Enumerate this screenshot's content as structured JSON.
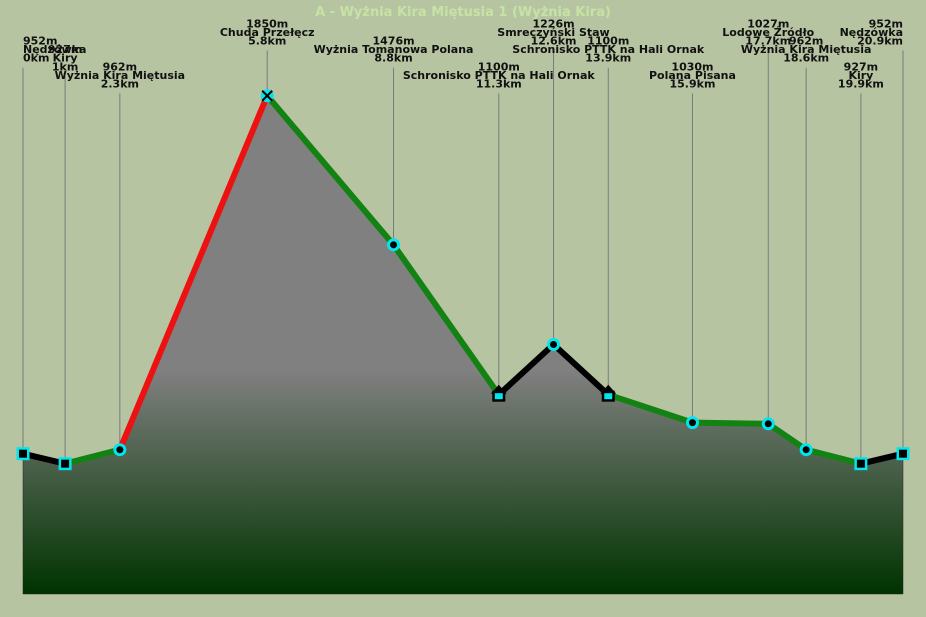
{
  "chart_data": {
    "type": "area",
    "title": "A - Wyżnia Kira Miętusia 1 (Wyżnia Kira)",
    "xlabel": "",
    "ylabel": "",
    "xlim": [
      0,
      20.9
    ],
    "ylim": [
      600,
      2040
    ],
    "colors": {
      "background": "#b7c4a2",
      "area_top": "#808080",
      "area_bottom": "#003300",
      "guide": "#7a7a7a",
      "marker_fill": "#00e5ee",
      "marker_stroke": "#000000"
    },
    "points": [
      {
        "name": "Nędzówka",
        "elev": 952,
        "elev_label": "952m",
        "dist": 0,
        "dist_label": "0km",
        "marker": "square",
        "anchor": "start",
        "lines": 3
      },
      {
        "name": "Kiry",
        "elev": 927,
        "elev_label": "927m",
        "dist": 1,
        "dist_label": "1km",
        "marker": "square",
        "anchor": "middle",
        "lines": 4
      },
      {
        "name": "Wyżnia Kira Miętusia",
        "elev": 962,
        "elev_label": "962m",
        "dist": 2.3,
        "dist_label": "2.3km",
        "marker": "circle",
        "anchor": "middle",
        "lines": 6
      },
      {
        "name": "Chuda Przełęcz",
        "elev": 1850,
        "elev_label": "1850m",
        "dist": 5.8,
        "dist_label": "5.8km",
        "marker": "cross",
        "anchor": "middle",
        "lines": 1
      },
      {
        "name": "Wyżnia Tomanowa Polana",
        "elev": 1476,
        "elev_label": "1476m",
        "dist": 8.8,
        "dist_label": "8.8km",
        "marker": "circle",
        "anchor": "middle",
        "lines": 3
      },
      {
        "name": "Schronisko PTTK na Hali Ornak",
        "elev": 1100,
        "elev_label": "1100m",
        "dist": 11.3,
        "dist_label": "11.3km",
        "marker": "hut",
        "anchor": "middle",
        "lines": 6
      },
      {
        "name": "Smreczyński Staw",
        "elev": 1226,
        "elev_label": "1226m",
        "dist": 12.6,
        "dist_label": "12.6km",
        "marker": "circle",
        "anchor": "middle",
        "lines": 1
      },
      {
        "name": "Schronisko PTTK na Hali Ornak",
        "elev": 1100,
        "elev_label": "1100m",
        "dist": 13.9,
        "dist_label": "13.9km",
        "marker": "hut",
        "anchor": "middle",
        "lines": 3
      },
      {
        "name": "Polana Pisana",
        "elev": 1030,
        "elev_label": "1030m",
        "dist": 15.9,
        "dist_label": "15.9km",
        "marker": "circle",
        "anchor": "middle",
        "lines": 6
      },
      {
        "name": "Lodowe Źródło",
        "elev": 1027,
        "elev_label": "1027m",
        "dist": 17.7,
        "dist_label": "17.7km",
        "marker": "circle",
        "anchor": "middle",
        "lines": 1
      },
      {
        "name": "Wyżnia Kira Miętusia",
        "elev": 962,
        "elev_label": "962m",
        "dist": 18.6,
        "dist_label": "18.6km",
        "marker": "circle",
        "anchor": "middle",
        "lines": 3
      },
      {
        "name": "Kiry",
        "elev": 927,
        "elev_label": "927m",
        "dist": 19.9,
        "dist_label": "19.9km",
        "marker": "square",
        "anchor": "middle",
        "lines": 6
      },
      {
        "name": "Nędzówka",
        "elev": 952,
        "elev_label": "952m",
        "dist": 20.9,
        "dist_label": "20.9km",
        "marker": "square",
        "anchor": "end",
        "lines": 1
      }
    ],
    "segments": [
      {
        "from": 0,
        "to": 1,
        "color": "#000000"
      },
      {
        "from": 1,
        "to": 2,
        "color": "#128212"
      },
      {
        "from": 2,
        "to": 3,
        "color": "#ee1111"
      },
      {
        "from": 3,
        "to": 4,
        "color": "#128212"
      },
      {
        "from": 4,
        "to": 5,
        "color": "#128212"
      },
      {
        "from": 5,
        "to": 6,
        "color": "#000000"
      },
      {
        "from": 6,
        "to": 7,
        "color": "#000000"
      },
      {
        "from": 7,
        "to": 8,
        "color": "#128212"
      },
      {
        "from": 8,
        "to": 9,
        "color": "#128212"
      },
      {
        "from": 9,
        "to": 10,
        "color": "#128212"
      },
      {
        "from": 10,
        "to": 11,
        "color": "#128212"
      },
      {
        "from": 11,
        "to": 12,
        "color": "#000000"
      }
    ]
  }
}
